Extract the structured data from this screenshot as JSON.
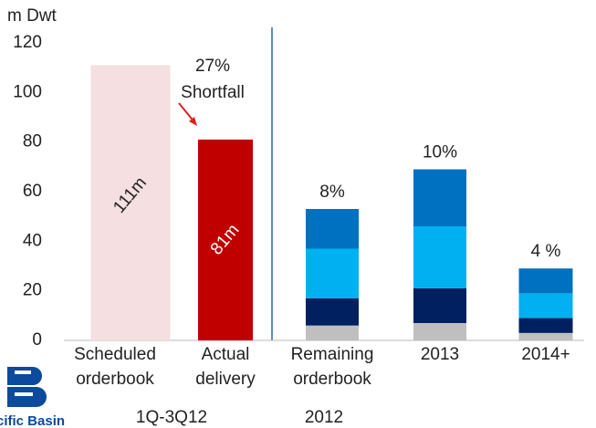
{
  "chart_data": {
    "type": "bar",
    "stacked": true,
    "y_axis_label": "m Dwt",
    "categories": [
      [
        "Scheduled",
        "orderbook"
      ],
      [
        "Actual",
        "delivery"
      ],
      [
        "Remaining",
        "orderbook"
      ],
      [
        "2013"
      ],
      [
        "2014+"
      ]
    ],
    "group_labels": [
      "1Q-3Q12",
      "2012"
    ],
    "series": [
      {
        "color": "#f5dfe0",
        "values": [
          111,
          null,
          null,
          null,
          null
        ],
        "value_labels": [
          "111m",
          null,
          null,
          null,
          null
        ]
      },
      {
        "color": "#c00000",
        "values": [
          null,
          81,
          null,
          null,
          null
        ],
        "value_labels": [
          null,
          "81m",
          null,
          null,
          null
        ]
      },
      {
        "color": "#bfbfbf",
        "values": [
          null,
          null,
          6,
          7,
          3
        ]
      },
      {
        "color": "#002060",
        "values": [
          null,
          null,
          11,
          14,
          6
        ]
      },
      {
        "color": "#00b0f0",
        "values": [
          null,
          null,
          20,
          25,
          10
        ]
      },
      {
        "color": "#0070c0",
        "values": [
          null,
          null,
          16,
          23,
          10
        ]
      }
    ],
    "annotations": [
      null,
      [
        "27%",
        "Shortfall"
      ],
      [
        "8%"
      ],
      [
        "10%"
      ],
      [
        "4 %"
      ]
    ],
    "ylim": [
      0,
      120
    ],
    "yticks": [
      0,
      20,
      40,
      60,
      80,
      100,
      120
    ],
    "grid": false,
    "logo_text": "cific Basin"
  }
}
